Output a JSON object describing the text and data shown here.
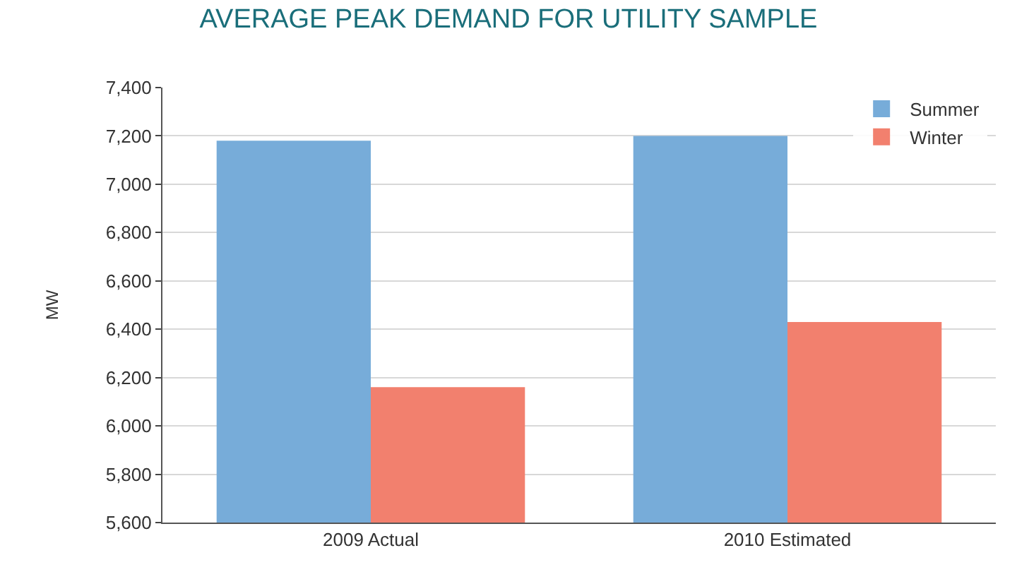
{
  "chart_data": {
    "type": "bar",
    "title": "AVERAGE PEAK DEMAND FOR UTILITY SAMPLE",
    "ylabel": "MW",
    "categories": [
      "2009 Actual",
      "2010 Estimated"
    ],
    "series": [
      {
        "name": "Summer",
        "color": "#77acd9",
        "values": [
          7180,
          7200
        ]
      },
      {
        "name": "Winter",
        "color": "#f2806e",
        "values": [
          6160,
          6430
        ]
      }
    ],
    "ylim": [
      5600,
      7400
    ],
    "yticks": [
      {
        "value": 5600,
        "label": "5,600"
      },
      {
        "value": 5800,
        "label": "5,800"
      },
      {
        "value": 6000,
        "label": "6,000"
      },
      {
        "value": 6200,
        "label": "6,200"
      },
      {
        "value": 6400,
        "label": "6,400"
      },
      {
        "value": 6600,
        "label": "6,600"
      },
      {
        "value": 6800,
        "label": "6,800"
      },
      {
        "value": 7000,
        "label": "7,000"
      },
      {
        "value": 7200,
        "label": "7,200"
      },
      {
        "value": 7400,
        "label": "7,400"
      }
    ],
    "grid": "y",
    "legend": "top right"
  }
}
